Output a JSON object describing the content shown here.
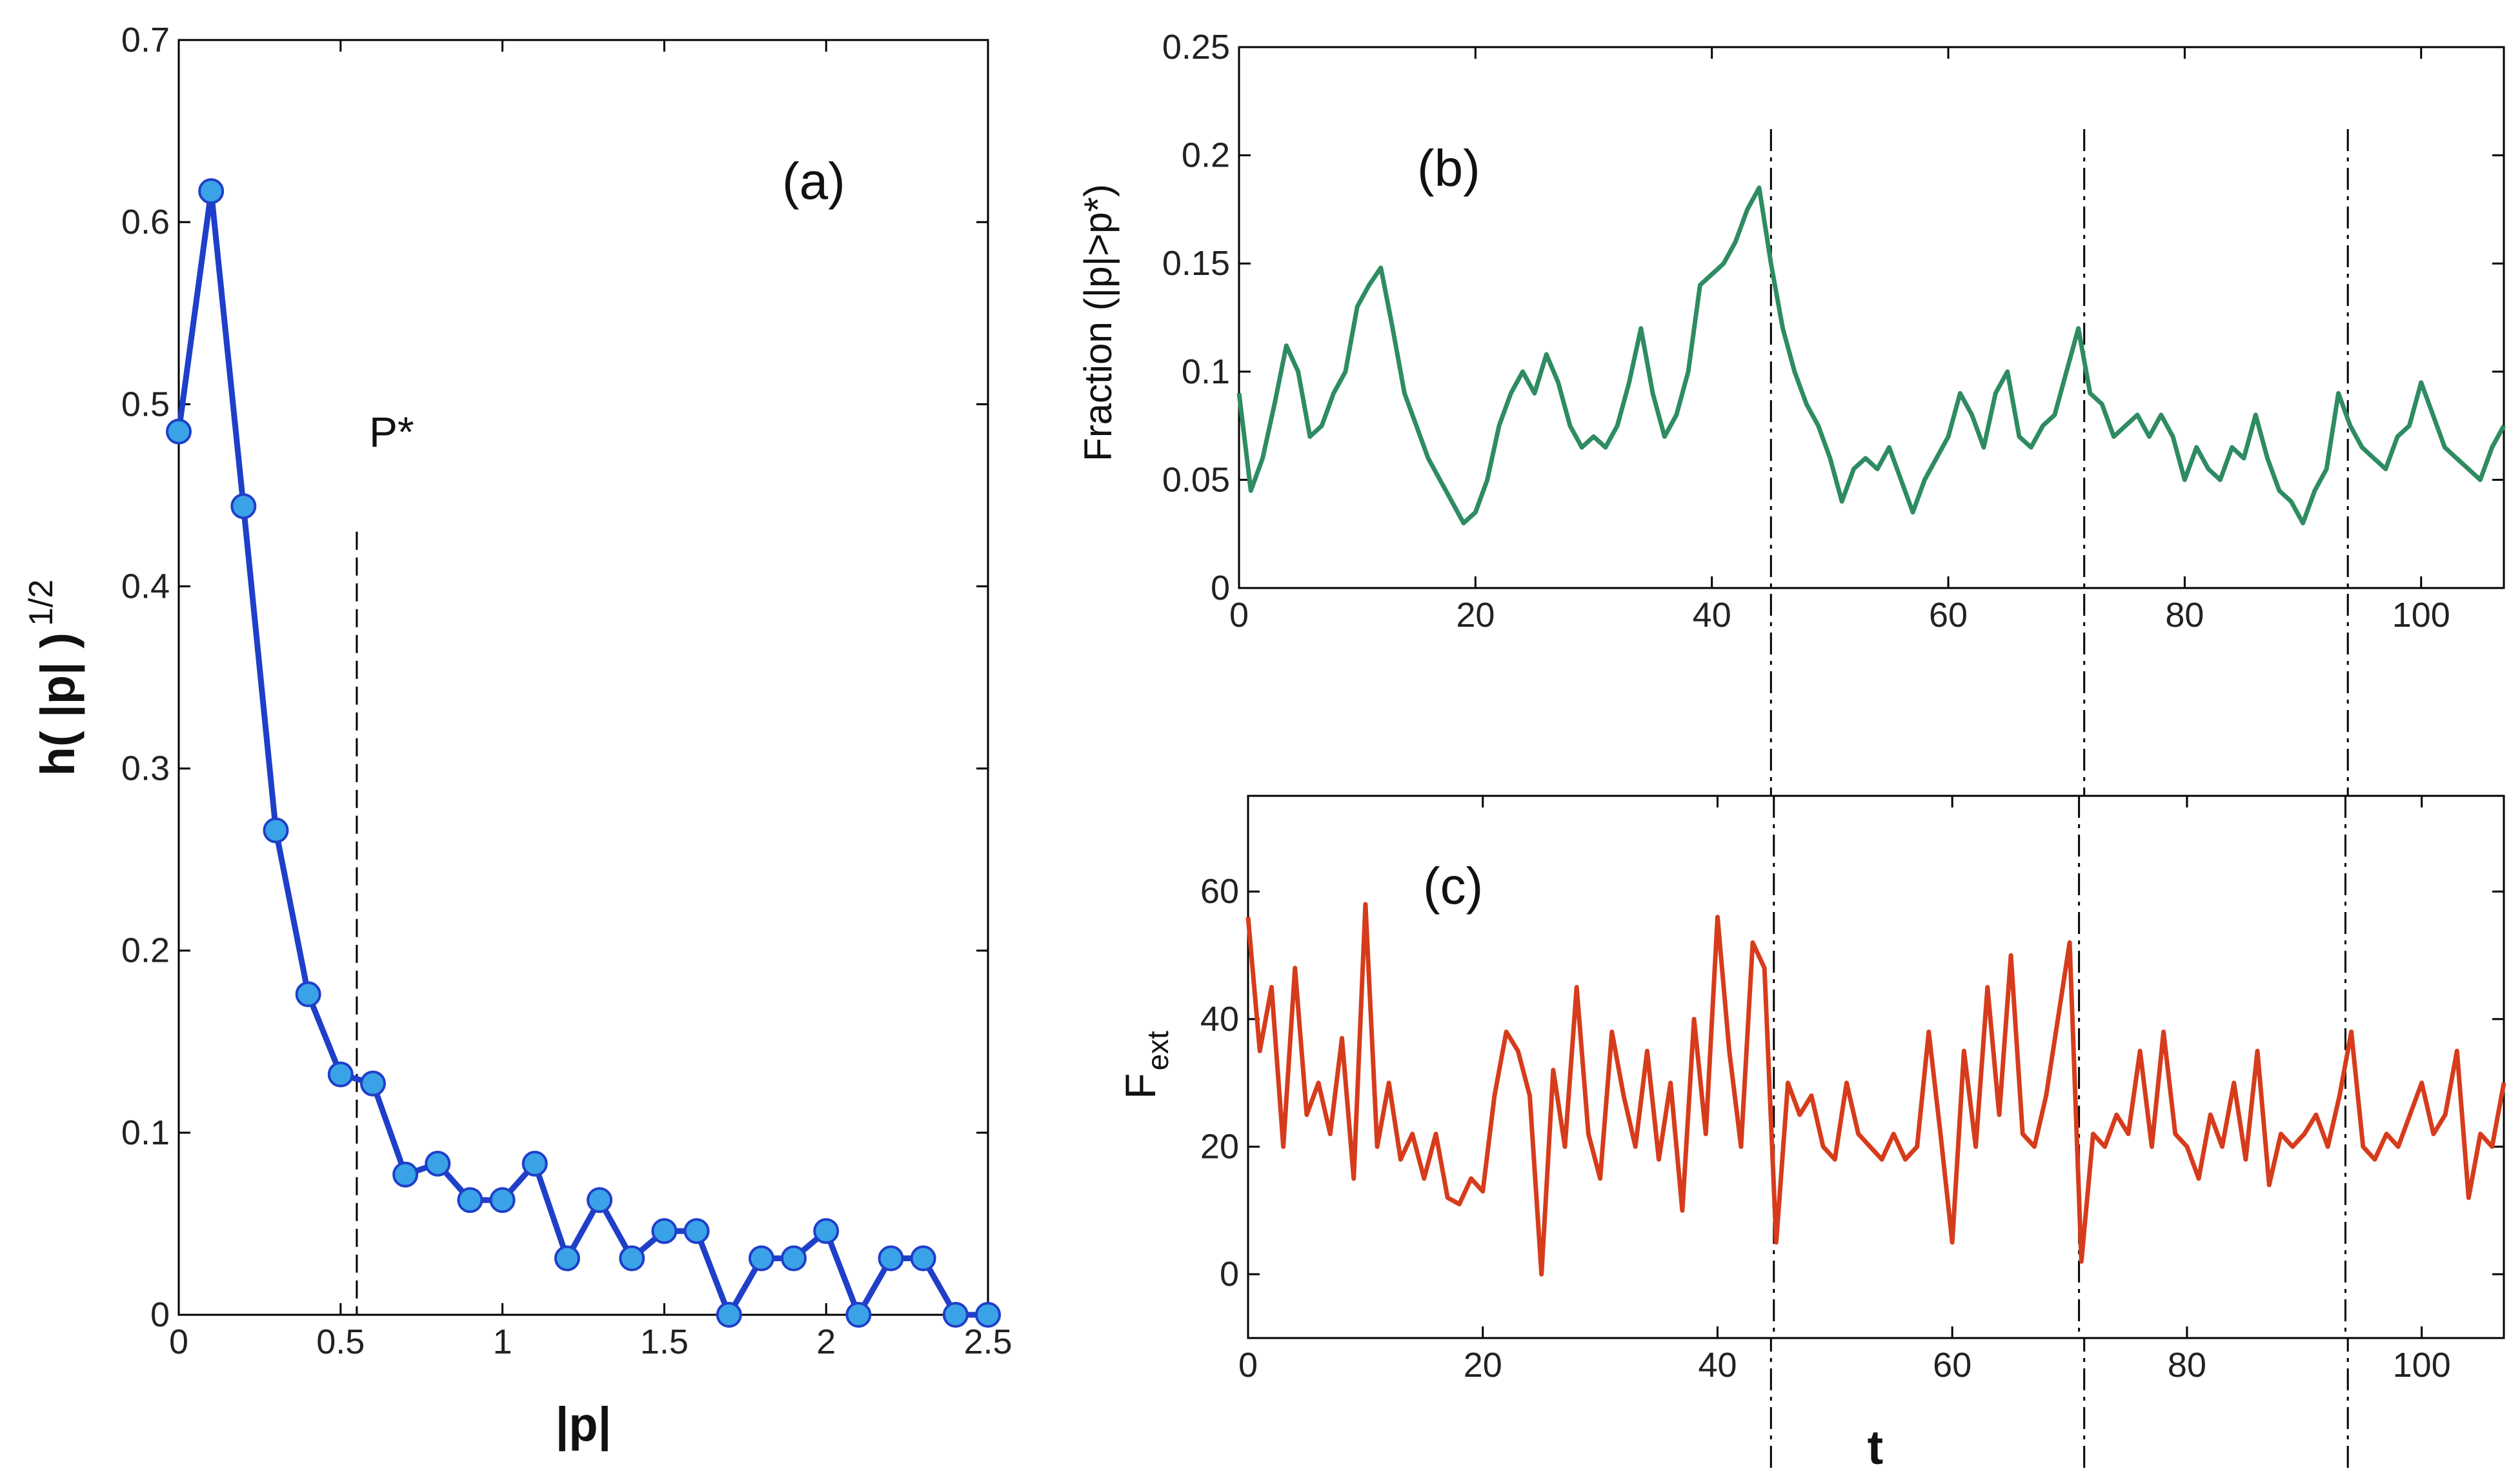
{
  "chart_data": [
    {
      "type": "line",
      "panel": "(a)",
      "xlabel": "|p|",
      "ylabel_main": "h( |p| )",
      "ylabel_sup": "1/2",
      "annotation": "P*",
      "threshold": 0.55,
      "xlim": [
        0,
        2.5
      ],
      "ylim": [
        0,
        0.7
      ],
      "xticks": [
        0,
        0.5,
        1,
        1.5,
        2,
        2.5
      ],
      "xtick_labels": [
        "0",
        "0.5",
        "1",
        "1.5",
        "2",
        "2.5"
      ],
      "yticks": [
        0,
        0.1,
        0.2,
        0.3,
        0.4,
        0.5,
        0.6,
        0.7
      ],
      "ytick_labels": [
        "0",
        "0.1",
        "0.2",
        "0.3",
        "0.4",
        "0.5",
        "0.6",
        "0.7"
      ],
      "line_color": "#1f3fc9",
      "marker_color": "#3aa3e8",
      "x": [
        0,
        0.1,
        0.2,
        0.3,
        0.4,
        0.5,
        0.6,
        0.7,
        0.8,
        0.9,
        1.0,
        1.1,
        1.2,
        1.3,
        1.4,
        1.5,
        1.6,
        1.7,
        1.8,
        1.9,
        2.0,
        2.1,
        2.2,
        2.3,
        2.4,
        2.5
      ],
      "y": [
        0.485,
        0.617,
        0.444,
        0.266,
        0.176,
        0.132,
        0.127,
        0.077,
        0.083,
        0.063,
        0.063,
        0.083,
        0.031,
        0.063,
        0.031,
        0.046,
        0.046,
        0.0,
        0.031,
        0.031,
        0.046,
        0.0,
        0.031,
        0.031,
        0.0,
        0.0
      ]
    },
    {
      "type": "line",
      "panel": "(b)",
      "xlabel": "",
      "ylabel": "Fraction (|p|>p*)",
      "xlim": [
        0,
        107
      ],
      "ylim": [
        0,
        0.25
      ],
      "xticks": [
        0,
        20,
        40,
        60,
        80,
        100
      ],
      "xtick_labels": [
        "0",
        "20",
        "40",
        "60",
        "80",
        "100"
      ],
      "yticks": [
        0,
        0.05,
        0.1,
        0.15,
        0.2,
        0.25
      ],
      "ytick_labels": [
        "0",
        "0.05",
        "0.1",
        "0.15",
        "0.2",
        "0.25"
      ],
      "line_color": "#2e8b62",
      "x": [
        0,
        1,
        2,
        3,
        4,
        5,
        6,
        7,
        8,
        9,
        10,
        11,
        12,
        13,
        14,
        15,
        16,
        17,
        18,
        19,
        20,
        21,
        22,
        23,
        24,
        25,
        26,
        27,
        28,
        29,
        30,
        31,
        32,
        33,
        34,
        35,
        36,
        37,
        38,
        39,
        40,
        41,
        42,
        43,
        44,
        45,
        46,
        47,
        48,
        49,
        50,
        51,
        52,
        53,
        54,
        55,
        56,
        57,
        58,
        59,
        60,
        61,
        62,
        63,
        64,
        65,
        66,
        67,
        68,
        69,
        70,
        71,
        72,
        73,
        74,
        75,
        76,
        77,
        78,
        79,
        80,
        81,
        82,
        83,
        84,
        85,
        86,
        87,
        88,
        89,
        90,
        91,
        92,
        93,
        94,
        95,
        96,
        97,
        98,
        99,
        100,
        101,
        102,
        103,
        104,
        105,
        106,
        107
      ],
      "y": [
        0.09,
        0.045,
        0.06,
        0.085,
        0.112,
        0.1,
        0.07,
        0.075,
        0.09,
        0.1,
        0.13,
        0.14,
        0.148,
        0.12,
        0.09,
        0.075,
        0.06,
        0.05,
        0.04,
        0.03,
        0.035,
        0.05,
        0.075,
        0.09,
        0.1,
        0.09,
        0.108,
        0.095,
        0.075,
        0.065,
        0.07,
        0.065,
        0.075,
        0.095,
        0.12,
        0.09,
        0.07,
        0.08,
        0.1,
        0.14,
        0.145,
        0.15,
        0.16,
        0.175,
        0.185,
        0.15,
        0.12,
        0.1,
        0.085,
        0.075,
        0.06,
        0.04,
        0.055,
        0.06,
        0.055,
        0.065,
        0.05,
        0.035,
        0.05,
        0.06,
        0.07,
        0.09,
        0.08,
        0.065,
        0.09,
        0.1,
        0.07,
        0.065,
        0.075,
        0.08,
        0.1,
        0.12,
        0.09,
        0.085,
        0.07,
        0.075,
        0.08,
        0.07,
        0.08,
        0.07,
        0.05,
        0.065,
        0.055,
        0.05,
        0.065,
        0.06,
        0.08,
        0.06,
        0.045,
        0.04,
        0.03,
        0.045,
        0.055,
        0.09,
        0.075,
        0.065,
        0.06,
        0.055,
        0.07,
        0.075,
        0.095,
        0.08,
        0.065,
        0.06,
        0.055,
        0.05,
        0.065,
        0.075
      ]
    },
    {
      "type": "line",
      "panel": "(c)",
      "xlabel": "t",
      "ylabel_main": "F",
      "ylabel_sub": "ext",
      "xlim": [
        0,
        107
      ],
      "ylim": [
        -10,
        75
      ],
      "xticks": [
        0,
        20,
        40,
        60,
        80,
        100
      ],
      "xtick_labels": [
        "0",
        "20",
        "40",
        "60",
        "80",
        "100"
      ],
      "yticks": [
        0,
        20,
        40,
        60
      ],
      "ytick_labels": [
        "0",
        "20",
        "40",
        "60"
      ],
      "line_color": "#d63c1c",
      "x": [
        0,
        1,
        2,
        3,
        4,
        5,
        6,
        7,
        8,
        9,
        10,
        11,
        12,
        13,
        14,
        15,
        16,
        17,
        18,
        19,
        20,
        21,
        22,
        23,
        24,
        25,
        26,
        27,
        28,
        29,
        30,
        31,
        32,
        33,
        34,
        35,
        36,
        37,
        38,
        39,
        40,
        41,
        42,
        43,
        44,
        45,
        46,
        47,
        48,
        49,
        50,
        51,
        52,
        53,
        54,
        55,
        56,
        57,
        58,
        59,
        60,
        61,
        62,
        63,
        64,
        65,
        66,
        67,
        68,
        69,
        70,
        71,
        72,
        73,
        74,
        75,
        76,
        77,
        78,
        79,
        80,
        81,
        82,
        83,
        84,
        85,
        86,
        87,
        88,
        89,
        90,
        91,
        92,
        93,
        94,
        95,
        96,
        97,
        98,
        99,
        100,
        101,
        102,
        103,
        104,
        105,
        106,
        107
      ],
      "y": [
        56,
        35,
        45,
        20,
        48,
        25,
        30,
        22,
        37,
        15,
        58,
        20,
        30,
        18,
        22,
        15,
        22,
        12,
        11,
        15,
        13,
        28,
        38,
        35,
        28,
        0,
        32,
        20,
        45,
        22,
        15,
        38,
        28,
        20,
        35,
        18,
        30,
        10,
        40,
        22,
        56,
        35,
        20,
        52,
        48,
        5,
        30,
        25,
        28,
        20,
        18,
        30,
        22,
        20,
        18,
        22,
        18,
        20,
        38,
        22,
        5,
        35,
        20,
        45,
        25,
        50,
        22,
        20,
        28,
        40,
        52,
        2,
        22,
        20,
        25,
        22,
        35,
        20,
        38,
        22,
        20,
        15,
        25,
        20,
        30,
        18,
        35,
        14,
        22,
        20,
        22,
        25,
        20,
        28,
        38,
        20,
        18,
        22,
        20,
        25,
        30,
        22,
        25,
        35,
        12,
        22,
        20,
        30
      ]
    }
  ],
  "events": {
    "b_dashdot_x": [
      45,
      71.5,
      93.8
    ],
    "c_dashdot_x": [
      44.8,
      70.8,
      93.5
    ]
  }
}
